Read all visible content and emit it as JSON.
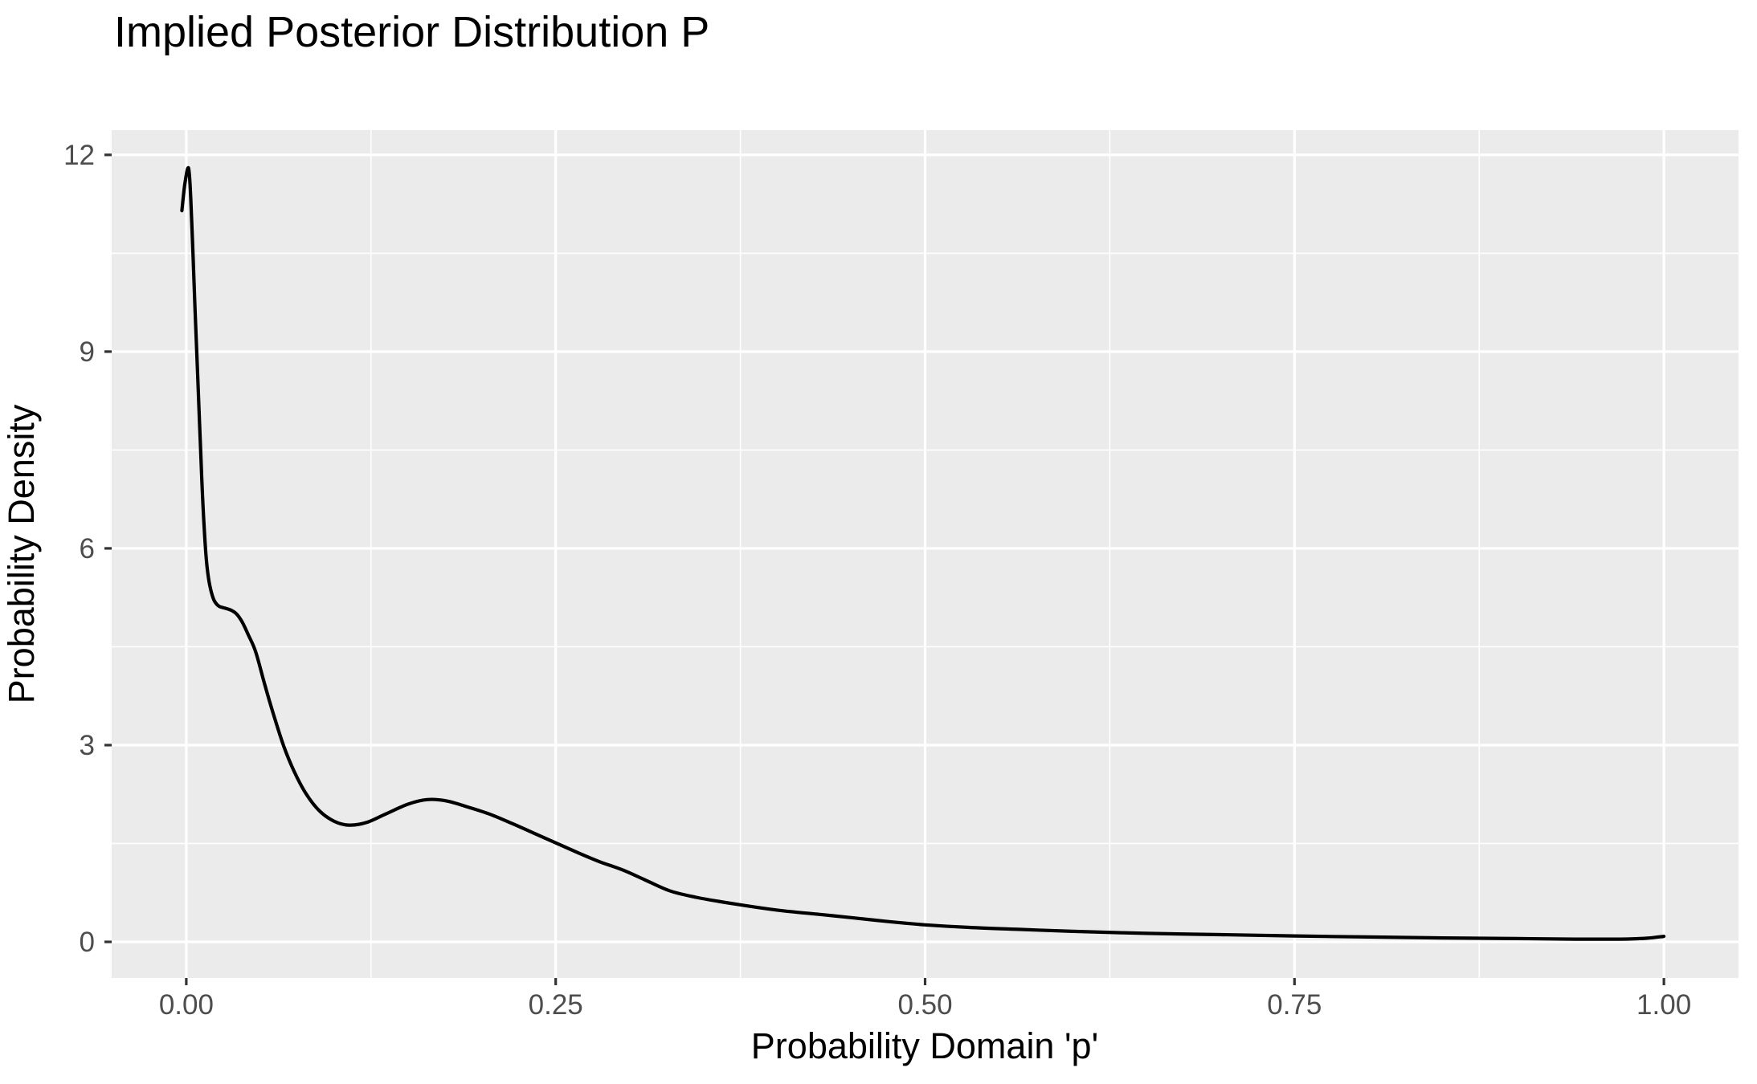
{
  "chart_data": {
    "type": "line",
    "title": "Implied Posterior Distribution P",
    "xlabel": "Probability Domain 'p'",
    "ylabel": "Probability Density",
    "x_ticks": [
      0.0,
      0.25,
      0.5,
      0.75,
      1.0
    ],
    "x_tick_labels": [
      "0.00",
      "0.25",
      "0.50",
      "0.75",
      "1.00"
    ],
    "y_ticks": [
      0,
      3,
      6,
      9,
      12
    ],
    "y_tick_labels": [
      "0",
      "3",
      "6",
      "9",
      "12"
    ],
    "x_minor_ticks": [
      0.125,
      0.375,
      0.625,
      0.875
    ],
    "y_minor_ticks": [
      1.5,
      4.5,
      7.5,
      10.5
    ],
    "xlim": [
      -0.0505,
      1.0505
    ],
    "ylim": [
      -0.551,
      12.378
    ],
    "grid": "on",
    "legend": "none",
    "style": "ggplot2-grey-theme",
    "colors": {
      "page_bg": "#ffffff",
      "panel_bg": "#ebebeb",
      "gridline": "#ffffff",
      "curve": "#000000",
      "tick_mark": "#333333",
      "tick_text": "#4d4d4d",
      "title_text": "#000000"
    },
    "series": [
      {
        "name": "posterior-density-curve",
        "points": [
          [
            -0.003,
            11.15
          ],
          [
            -0.001,
            11.55
          ],
          [
            0.0015,
            11.8
          ],
          [
            0.003,
            11.35
          ],
          [
            0.0045,
            10.5
          ],
          [
            0.006,
            9.6
          ],
          [
            0.0075,
            8.75
          ],
          [
            0.009,
            7.9
          ],
          [
            0.0105,
            7.05
          ],
          [
            0.012,
            6.35
          ],
          [
            0.0135,
            5.85
          ],
          [
            0.015,
            5.55
          ],
          [
            0.017,
            5.33
          ],
          [
            0.019,
            5.2
          ],
          [
            0.022,
            5.12
          ],
          [
            0.026,
            5.09
          ],
          [
            0.03,
            5.06
          ],
          [
            0.034,
            5.0
          ],
          [
            0.038,
            4.87
          ],
          [
            0.042,
            4.68
          ],
          [
            0.047,
            4.42
          ],
          [
            0.053,
            3.93
          ],
          [
            0.059,
            3.47
          ],
          [
            0.066,
            2.98
          ],
          [
            0.073,
            2.6
          ],
          [
            0.081,
            2.26
          ],
          [
            0.09,
            2.0
          ],
          [
            0.1,
            1.84
          ],
          [
            0.11,
            1.78
          ],
          [
            0.122,
            1.82
          ],
          [
            0.135,
            1.95
          ],
          [
            0.15,
            2.1
          ],
          [
            0.163,
            2.17
          ],
          [
            0.176,
            2.15
          ],
          [
            0.19,
            2.06
          ],
          [
            0.205,
            1.95
          ],
          [
            0.22,
            1.81
          ],
          [
            0.235,
            1.66
          ],
          [
            0.25,
            1.51
          ],
          [
            0.265,
            1.36
          ],
          [
            0.28,
            1.22
          ],
          [
            0.295,
            1.1
          ],
          [
            0.31,
            0.95
          ],
          [
            0.327,
            0.78
          ],
          [
            0.345,
            0.68
          ],
          [
            0.365,
            0.6
          ],
          [
            0.385,
            0.53
          ],
          [
            0.405,
            0.47
          ],
          [
            0.428,
            0.42
          ],
          [
            0.45,
            0.37
          ],
          [
            0.475,
            0.31
          ],
          [
            0.5,
            0.26
          ],
          [
            0.53,
            0.22
          ],
          [
            0.565,
            0.19
          ],
          [
            0.6,
            0.16
          ],
          [
            0.65,
            0.13
          ],
          [
            0.7,
            0.11
          ],
          [
            0.75,
            0.09
          ],
          [
            0.8,
            0.075
          ],
          [
            0.85,
            0.06
          ],
          [
            0.9,
            0.05
          ],
          [
            0.94,
            0.042
          ],
          [
            0.97,
            0.042
          ],
          [
            0.988,
            0.055
          ],
          [
            1.0,
            0.085
          ]
        ]
      }
    ]
  }
}
